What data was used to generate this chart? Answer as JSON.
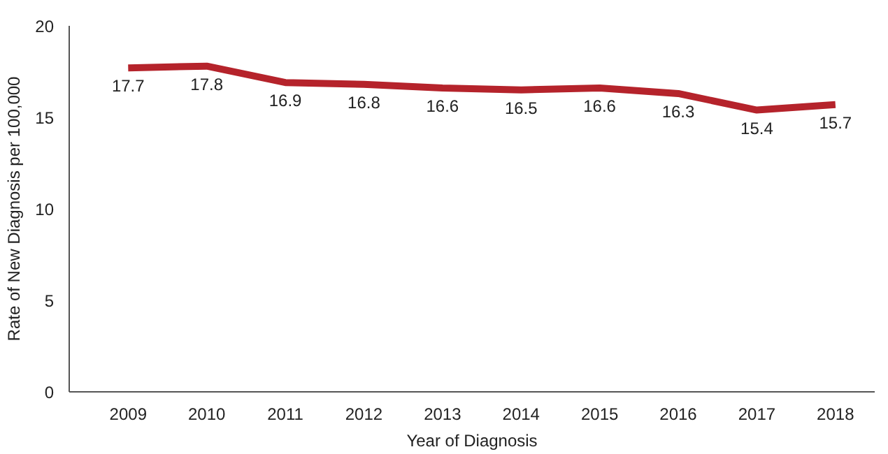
{
  "chart_data": {
    "type": "line",
    "xlabel": "Year of Diagnosis",
    "ylabel": "Rate of New Diagnosis per 100,000",
    "categories": [
      "2009",
      "2010",
      "2011",
      "2012",
      "2013",
      "2014",
      "2015",
      "2016",
      "2017",
      "2018"
    ],
    "series": [
      {
        "color": "#b5232b",
        "values": [
          17.7,
          17.8,
          16.9,
          16.8,
          16.6,
          16.5,
          16.6,
          16.3,
          15.4,
          15.7
        ]
      }
    ],
    "ylim": [
      0,
      20
    ],
    "yticks": [
      0,
      5,
      10,
      15,
      20
    ],
    "grid": false,
    "data_labels": true,
    "marker": "none",
    "line_style": "solid"
  }
}
